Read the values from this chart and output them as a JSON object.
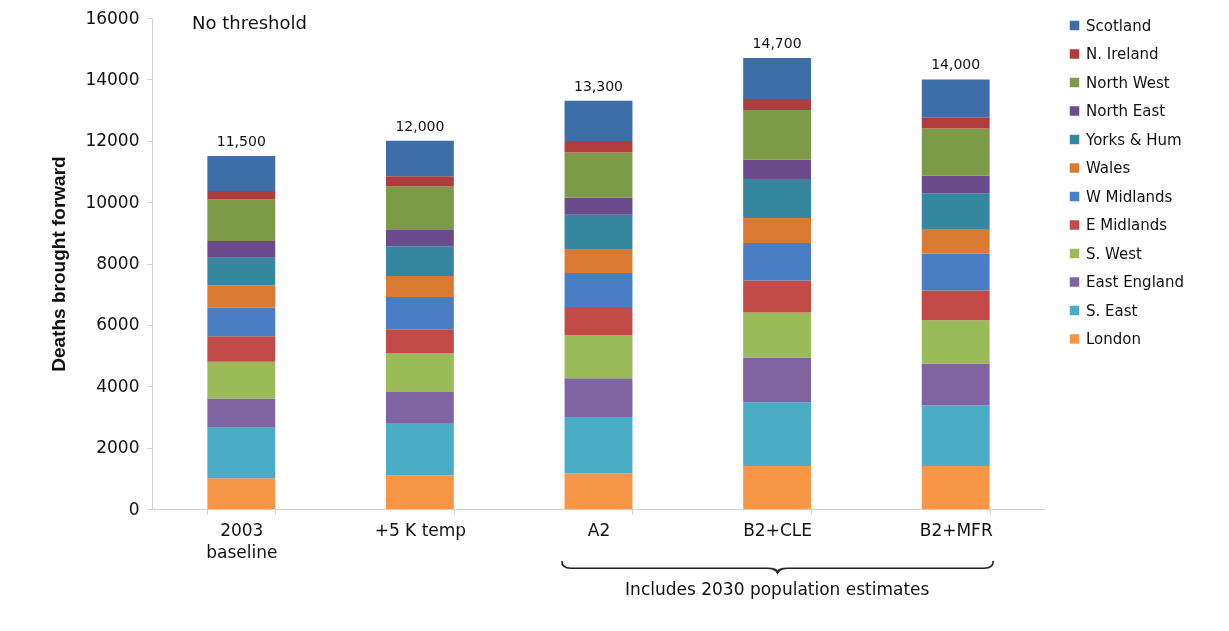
{
  "chart_data": {
    "type": "bar",
    "stacked": true,
    "ylabel": "Deaths brought forward",
    "categories": [
      "2003 baseline",
      "+5 K temp",
      "A2",
      "B2+CLE",
      "B2+MFR"
    ],
    "series": [
      {
        "name": "London",
        "color": "#f79646",
        "values": [
          1000,
          1100,
          1160,
          1400,
          1400
        ]
      },
      {
        "name": "S. East",
        "color": "#4bacc6",
        "values": [
          1650,
          1680,
          1840,
          2080,
          1970
        ]
      },
      {
        "name": "East England",
        "color": "#8064a2",
        "values": [
          950,
          1030,
          1260,
          1460,
          1370
        ]
      },
      {
        "name": "S. West",
        "color": "#9bbb59",
        "values": [
          1200,
          1260,
          1400,
          1460,
          1410
        ]
      },
      {
        "name": "E Midlands",
        "color": "#c24b48",
        "values": [
          830,
          790,
          920,
          1050,
          970
        ]
      },
      {
        "name": "W Midlands",
        "color": "#4a7ec4",
        "values": [
          940,
          1050,
          1110,
          1220,
          1200
        ]
      },
      {
        "name": "Wales",
        "color": "#d97a30",
        "values": [
          710,
          680,
          760,
          810,
          780
        ]
      },
      {
        "name": "Yorks & Hum",
        "color": "#34879e",
        "values": [
          910,
          970,
          1140,
          1270,
          1190
        ]
      },
      {
        "name": "North East",
        "color": "#6a4c8c",
        "values": [
          540,
          560,
          560,
          630,
          570
        ]
      },
      {
        "name": "North West",
        "color": "#7d9a48",
        "values": [
          1360,
          1400,
          1470,
          1620,
          1540
        ]
      },
      {
        "name": "N. Ireland",
        "color": "#b03c3c",
        "values": [
          270,
          320,
          370,
          360,
          350
        ]
      },
      {
        "name": "Scotland",
        "color": "#3e6ea6",
        "values": [
          1140,
          1160,
          1310,
          1340,
          1250
        ]
      }
    ],
    "totals": [
      "11,500",
      "12,000",
      "13,300",
      "14,700",
      "14,000"
    ],
    "ylim": [
      0,
      16000
    ],
    "yticks": [
      0,
      2000,
      4000,
      6000,
      8000,
      10000,
      12000,
      14000,
      16000
    ],
    "grid": false,
    "legend": "right",
    "annotations": [
      "No threshold",
      "Includes 2030 population estimates"
    ]
  }
}
